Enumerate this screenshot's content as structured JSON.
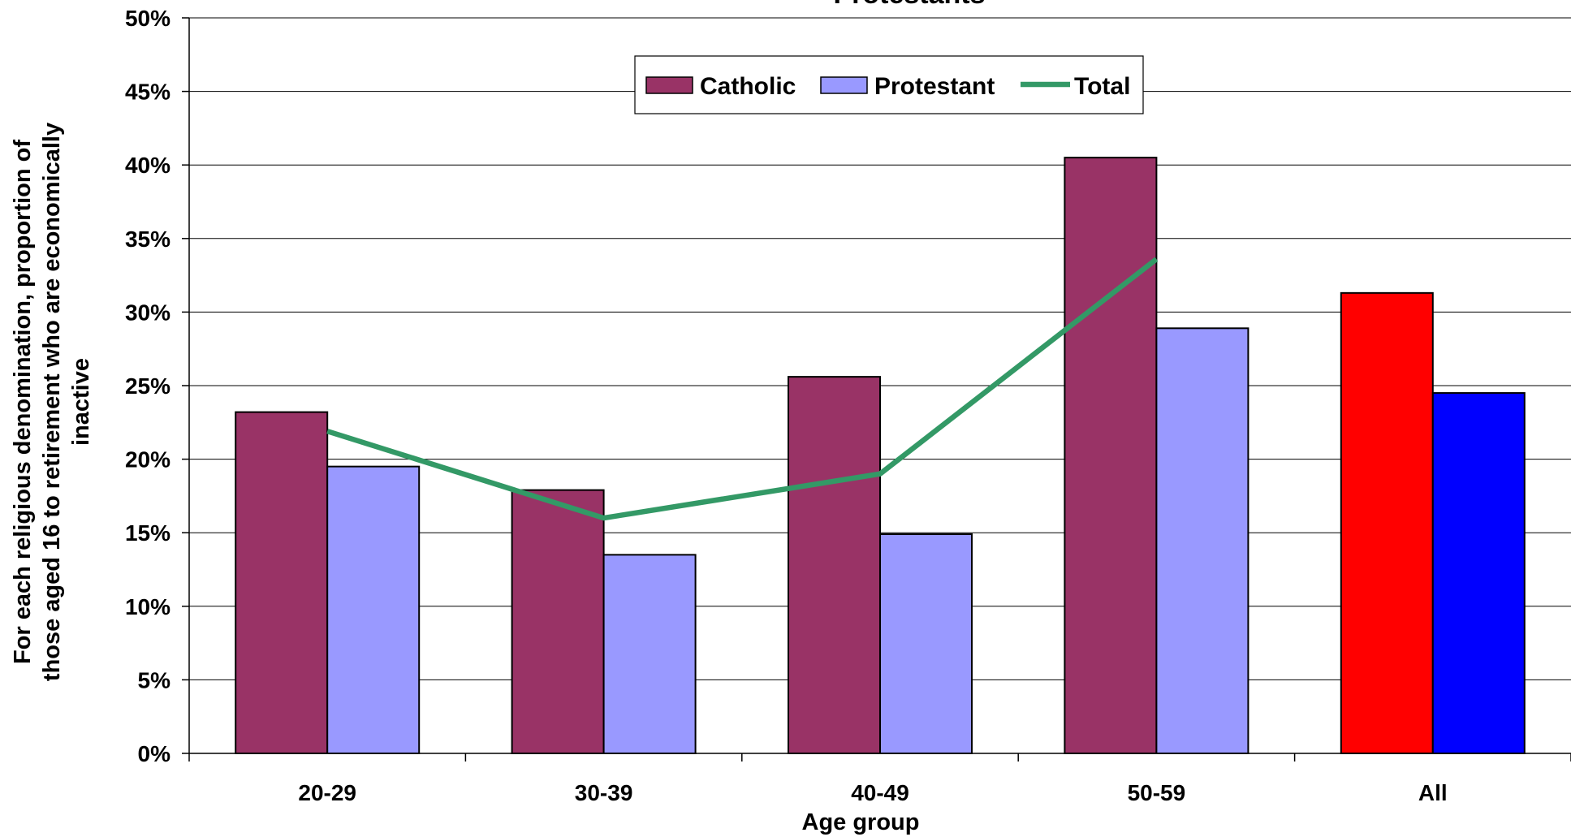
{
  "chart_data": {
    "type": "bar",
    "title": "Protestants",
    "xlabel": "Age group",
    "ylabel": [
      "For each religious denomination, proportion of",
      "those aged 16 to retirement who are economically",
      "inactive"
    ],
    "categories": [
      "20-29",
      "30-39",
      "40-49",
      "50-59",
      "All"
    ],
    "ylim": [
      0,
      0.5
    ],
    "yticks": [
      "0%",
      "5%",
      "10%",
      "15%",
      "20%",
      "25%",
      "30%",
      "35%",
      "40%",
      "45%",
      "50%"
    ],
    "grid": true,
    "legend_position": "top-center",
    "series": [
      {
        "name": "Catholic",
        "type": "bar",
        "color": "#993366",
        "values": [
          0.232,
          0.179,
          0.256,
          0.405,
          0.313
        ],
        "override_colors": {
          "4": "#FF0000"
        }
      },
      {
        "name": "Protestant",
        "type": "bar",
        "color": "#9999FF",
        "values": [
          0.195,
          0.135,
          0.149,
          0.289,
          0.245
        ],
        "override_colors": {
          "4": "#0000FF"
        }
      },
      {
        "name": "Total",
        "type": "line",
        "color": "#339966",
        "values": [
          0.219,
          0.16,
          0.19,
          0.336,
          null
        ]
      }
    ]
  }
}
